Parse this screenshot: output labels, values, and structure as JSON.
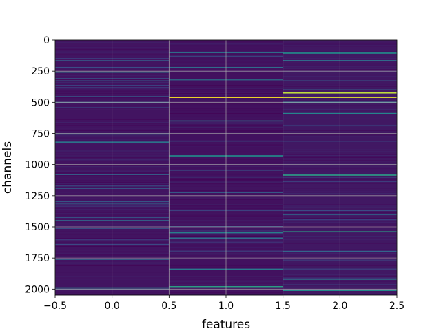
{
  "chart_data": {
    "type": "heatmap",
    "title": "",
    "xlabel": "features",
    "ylabel": "channels",
    "xlim": [
      -0.5,
      2.5
    ],
    "ylim": [
      2048,
      0
    ],
    "x_ticks": [
      -0.5,
      0.0,
      0.5,
      1.0,
      1.5,
      2.0,
      2.5
    ],
    "x_tick_labels": [
      "−0.5",
      "0.0",
      "0.5",
      "1.0",
      "1.5",
      "2.0",
      "2.5"
    ],
    "y_ticks": [
      0,
      250,
      500,
      750,
      1000,
      1250,
      1500,
      1750,
      2000
    ],
    "y_tick_labels": [
      "0",
      "250",
      "500",
      "750",
      "1000",
      "1250",
      "1500",
      "1750",
      "2000"
    ],
    "grid": true,
    "colormap": "viridis",
    "columns": [
      0,
      1,
      2
    ],
    "rows": 2048,
    "column_base_values": [
      0.06,
      0.05,
      0.07
    ],
    "highlight_rows": [
      {
        "feature": 0,
        "channel": 258,
        "value": 0.45
      },
      {
        "feature": 0,
        "channel": 500,
        "value": 0.3
      },
      {
        "feature": 0,
        "channel": 755,
        "value": 0.35
      },
      {
        "feature": 0,
        "channel": 820,
        "value": 0.4
      },
      {
        "feature": 0,
        "channel": 1190,
        "value": 0.3
      },
      {
        "feature": 0,
        "channel": 1450,
        "value": 0.35
      },
      {
        "feature": 0,
        "channel": 1760,
        "value": 0.35
      },
      {
        "feature": 0,
        "channel": 1990,
        "value": 0.45
      },
      {
        "feature": 1,
        "channel": 100,
        "value": 0.4
      },
      {
        "feature": 1,
        "channel": 220,
        "value": 0.35
      },
      {
        "feature": 1,
        "channel": 315,
        "value": 0.45
      },
      {
        "feature": 1,
        "channel": 460,
        "value": 1.0
      },
      {
        "feature": 1,
        "channel": 650,
        "value": 0.35
      },
      {
        "feature": 1,
        "channel": 930,
        "value": 0.5
      },
      {
        "feature": 1,
        "channel": 1545,
        "value": 0.45
      },
      {
        "feature": 1,
        "channel": 1590,
        "value": 0.35
      },
      {
        "feature": 1,
        "channel": 1840,
        "value": 0.4
      },
      {
        "feature": 1,
        "channel": 1980,
        "value": 0.55
      },
      {
        "feature": 2,
        "channel": 105,
        "value": 0.5
      },
      {
        "feature": 2,
        "channel": 165,
        "value": 0.35
      },
      {
        "feature": 2,
        "channel": 425,
        "value": 0.9
      },
      {
        "feature": 2,
        "channel": 460,
        "value": 0.95
      },
      {
        "feature": 2,
        "channel": 500,
        "value": 0.4
      },
      {
        "feature": 2,
        "channel": 590,
        "value": 0.45
      },
      {
        "feature": 2,
        "channel": 1085,
        "value": 0.55
      },
      {
        "feature": 2,
        "channel": 1400,
        "value": 0.35
      },
      {
        "feature": 2,
        "channel": 1540,
        "value": 0.55
      },
      {
        "feature": 2,
        "channel": 1700,
        "value": 0.35
      },
      {
        "feature": 2,
        "channel": 1920,
        "value": 0.4
      },
      {
        "feature": 2,
        "channel": 2010,
        "value": 0.5
      }
    ]
  }
}
